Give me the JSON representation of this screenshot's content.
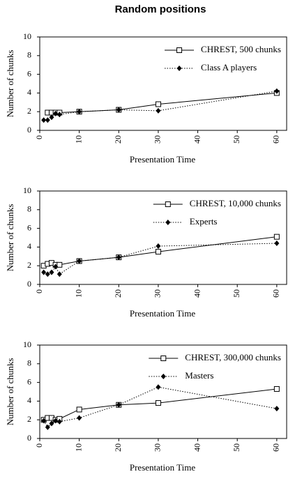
{
  "title": "Random positions",
  "chart_data": [
    {
      "type": "line",
      "xlabel": "Presentation Time",
      "ylabel": "Number of chunks",
      "x": [
        1,
        2,
        3,
        4,
        5,
        10,
        20,
        30,
        60
      ],
      "xlim": [
        0,
        62.5
      ],
      "xticks": [
        0,
        10,
        20,
        30,
        40,
        50,
        60
      ],
      "ylim": [
        0,
        10
      ],
      "yticks": [
        0,
        2,
        4,
        6,
        8,
        10
      ],
      "legend": "top-right",
      "series": [
        {
          "name": "CHREST, 500 chunks",
          "color": "#000000",
          "marker": "square",
          "line_style": "solid",
          "values": [
            null,
            1.9,
            1.9,
            1.9,
            1.9,
            2.0,
            2.2,
            2.8,
            4.0
          ]
        },
        {
          "name": "Class A players",
          "color": "#000000",
          "marker": "diamond",
          "line_style": "dotted",
          "values": [
            1.1,
            1.1,
            1.4,
            1.8,
            1.7,
            2.0,
            2.2,
            2.1,
            4.2
          ]
        }
      ]
    },
    {
      "type": "line",
      "xlabel": "Presentation Time",
      "ylabel": "Number of chunks",
      "x": [
        1,
        2,
        3,
        4,
        5,
        10,
        20,
        30,
        60
      ],
      "xlim": [
        0,
        62.5
      ],
      "xticks": [
        0,
        10,
        20,
        30,
        40,
        50,
        60
      ],
      "ylim": [
        0,
        10
      ],
      "yticks": [
        0,
        2,
        4,
        6,
        8,
        10
      ],
      "legend": "top-right",
      "series": [
        {
          "name": "CHREST, 10,000 chunks",
          "color": "#000000",
          "marker": "square",
          "line_style": "solid",
          "values": [
            2.0,
            2.2,
            2.3,
            2.1,
            2.1,
            2.5,
            2.9,
            3.5,
            5.1
          ]
        },
        {
          "name": "Experts",
          "color": "#000000",
          "marker": "diamond",
          "line_style": "dotted",
          "values": [
            1.3,
            1.1,
            1.3,
            1.9,
            1.1,
            2.5,
            2.9,
            4.1,
            4.4
          ]
        }
      ]
    },
    {
      "type": "line",
      "xlabel": "Presentation Time",
      "ylabel": "Number of chunks",
      "x": [
        1,
        2,
        3,
        4,
        5,
        10,
        20,
        30,
        60
      ],
      "xlim": [
        0,
        62.5
      ],
      "xticks": [
        0,
        10,
        20,
        30,
        40,
        50,
        60
      ],
      "ylim": [
        0,
        10
      ],
      "yticks": [
        0,
        2,
        4,
        6,
        8,
        10
      ],
      "legend": "top-right",
      "series": [
        {
          "name": "CHREST, 300,000 chunks",
          "color": "#000000",
          "marker": "square",
          "line_style": "solid",
          "values": [
            2.0,
            2.2,
            2.2,
            2.0,
            2.1,
            3.1,
            3.6,
            3.8,
            5.3
          ]
        },
        {
          "name": "Masters",
          "color": "#000000",
          "marker": "diamond",
          "line_style": "dotted",
          "values": [
            1.9,
            1.2,
            1.6,
            1.9,
            1.8,
            2.2,
            3.6,
            5.5,
            3.2
          ]
        }
      ]
    }
  ]
}
